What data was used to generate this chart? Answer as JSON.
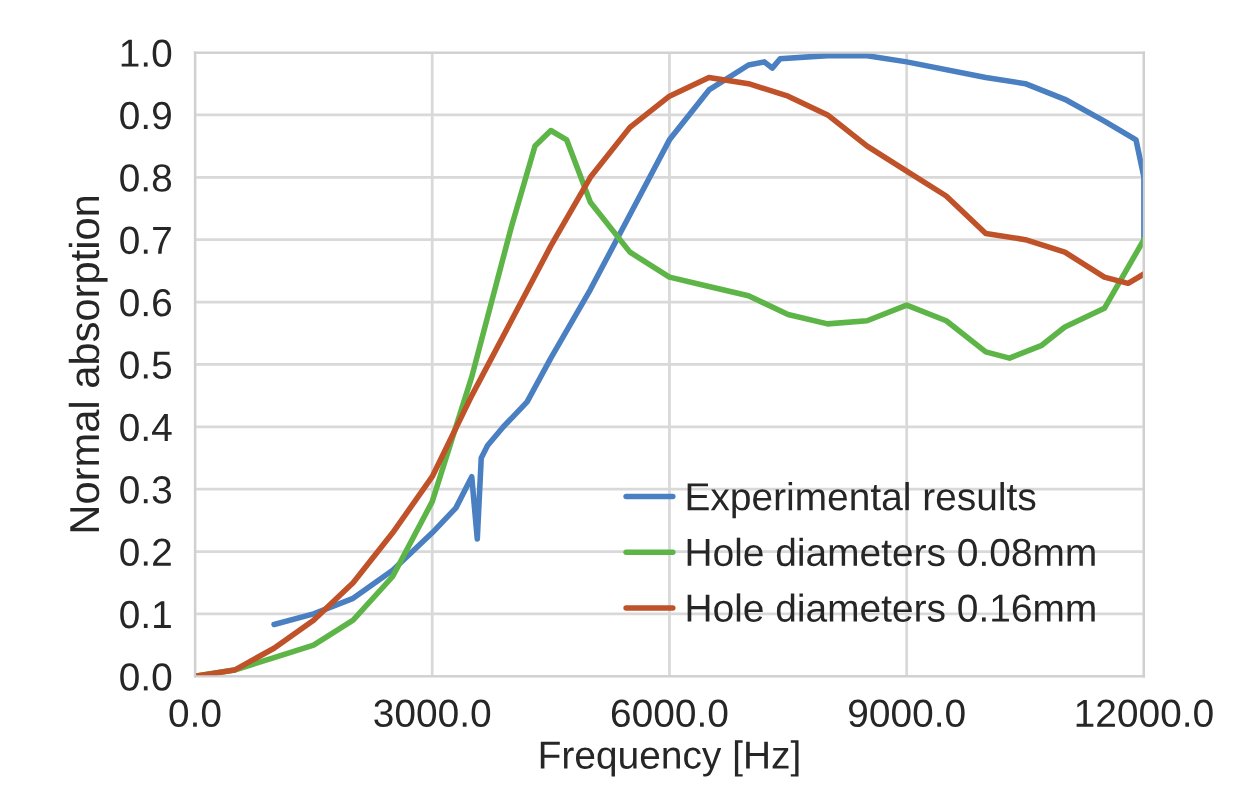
{
  "chart_data": {
    "type": "line",
    "xlabel": "Frequency [Hz]",
    "ylabel": "Normal absorption",
    "xlim": [
      0,
      12000
    ],
    "xticks": [
      {
        "value": 0,
        "label": "0.0"
      },
      {
        "value": 3000,
        "label": "3000.0"
      },
      {
        "value": 6000,
        "label": "6000.0"
      },
      {
        "value": 9000,
        "label": "9000.0"
      },
      {
        "value": 12000,
        "label": "12000.0"
      }
    ],
    "ylim": [
      0,
      1
    ],
    "yticks": [
      {
        "value": 0,
        "label": "0.0"
      },
      {
        "value": 0.1,
        "label": "0.1"
      },
      {
        "value": 0.2,
        "label": "0.2"
      },
      {
        "value": 0.3,
        "label": "0.3"
      },
      {
        "value": 0.4,
        "label": "0.4"
      },
      {
        "value": 0.5,
        "label": "0.5"
      },
      {
        "value": 0.6,
        "label": "0.6"
      },
      {
        "value": 0.7,
        "label": "0.7"
      },
      {
        "value": 0.8,
        "label": "0.8"
      },
      {
        "value": 0.9,
        "label": "0.9"
      },
      {
        "value": 1.0,
        "label": "1.0"
      }
    ],
    "grid": true,
    "legend": "bottom right",
    "marker": "none",
    "line_style": "solid",
    "series": [
      {
        "name": "Experimental results",
        "color": "#4a7fc1",
        "x": [
          1000,
          1500,
          2000,
          2500,
          3000,
          3300,
          3500,
          3570,
          3620,
          3700,
          3900,
          4200,
          4500,
          5000,
          5500,
          6000,
          6500,
          7000,
          7200,
          7300,
          7400,
          8000,
          8500,
          9000,
          10000,
          10500,
          11000,
          11500,
          11900,
          12000,
          12000
        ],
        "values": [
          0.083,
          0.1,
          0.125,
          0.17,
          0.23,
          0.27,
          0.32,
          0.22,
          0.35,
          0.37,
          0.4,
          0.44,
          0.51,
          0.62,
          0.74,
          0.86,
          0.94,
          0.98,
          0.985,
          0.975,
          0.99,
          0.995,
          0.995,
          0.985,
          0.96,
          0.95,
          0.925,
          0.89,
          0.86,
          0.8,
          0.7
        ]
      },
      {
        "name": "Hole diameters 0.08mm",
        "color": "#5db548",
        "x": [
          0,
          500,
          1000,
          1500,
          2000,
          2500,
          3000,
          3500,
          4000,
          4300,
          4500,
          4700,
          5000,
          5500,
          6000,
          6500,
          7000,
          7500,
          8000,
          8500,
          9000,
          9500,
          10000,
          10300,
          10700,
          11000,
          11500,
          12000
        ],
        "values": [
          0,
          0.01,
          0.03,
          0.05,
          0.09,
          0.16,
          0.28,
          0.48,
          0.72,
          0.85,
          0.875,
          0.86,
          0.76,
          0.68,
          0.64,
          0.625,
          0.61,
          0.58,
          0.565,
          0.57,
          0.595,
          0.57,
          0.52,
          0.51,
          0.53,
          0.56,
          0.59,
          0.7
        ]
      },
      {
        "name": "Hole diameters 0.16mm",
        "color": "#c0522a",
        "x": [
          0,
          500,
          1000,
          1500,
          2000,
          2500,
          3000,
          3500,
          4000,
          4500,
          5000,
          5500,
          6000,
          6500,
          7000,
          7500,
          8000,
          8500,
          9000,
          9500,
          10000,
          10500,
          11000,
          11500,
          11800,
          12000
        ],
        "values": [
          0,
          0.01,
          0.045,
          0.09,
          0.15,
          0.23,
          0.32,
          0.45,
          0.57,
          0.69,
          0.8,
          0.88,
          0.93,
          0.96,
          0.95,
          0.93,
          0.9,
          0.85,
          0.81,
          0.77,
          0.71,
          0.7,
          0.68,
          0.64,
          0.63,
          0.645
        ]
      }
    ]
  }
}
